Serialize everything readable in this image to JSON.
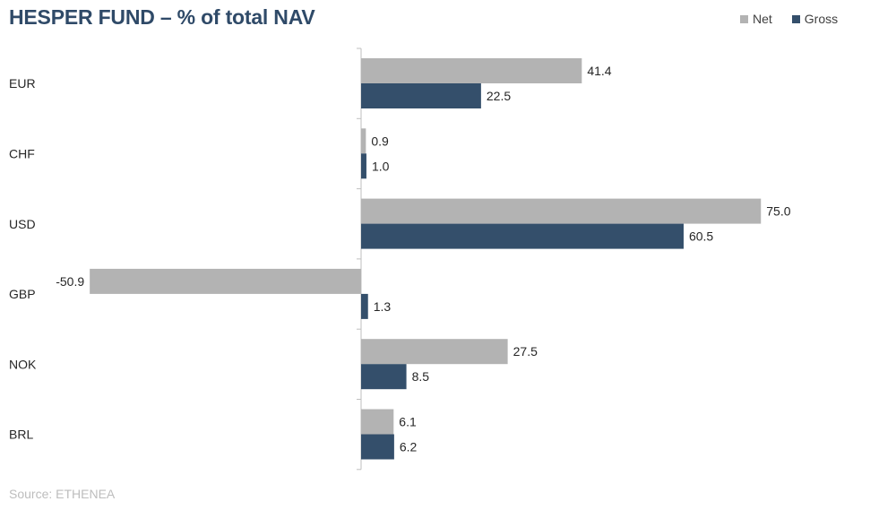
{
  "title": "HESPER FUND – % of total NAV",
  "source": "Source: ETHENEA",
  "colors": {
    "net": "#b3b3b3",
    "gross": "#344f6b",
    "axis": "#bfbfbf"
  },
  "chart_data": {
    "type": "bar",
    "orientation": "horizontal",
    "title": "HESPER FUND – % of total NAV",
    "categories": [
      "EUR",
      "CHF",
      "USD",
      "GBP",
      "NOK",
      "BRL"
    ],
    "series": [
      {
        "name": "Net",
        "values": [
          41.4,
          0.9,
          75.0,
          -50.9,
          27.5,
          6.1
        ]
      },
      {
        "name": "Gross",
        "values": [
          22.5,
          1.0,
          60.5,
          1.3,
          8.5,
          6.2
        ]
      }
    ],
    "xlim": [
      -51,
      76
    ],
    "grid": false,
    "legend": "top-right"
  }
}
